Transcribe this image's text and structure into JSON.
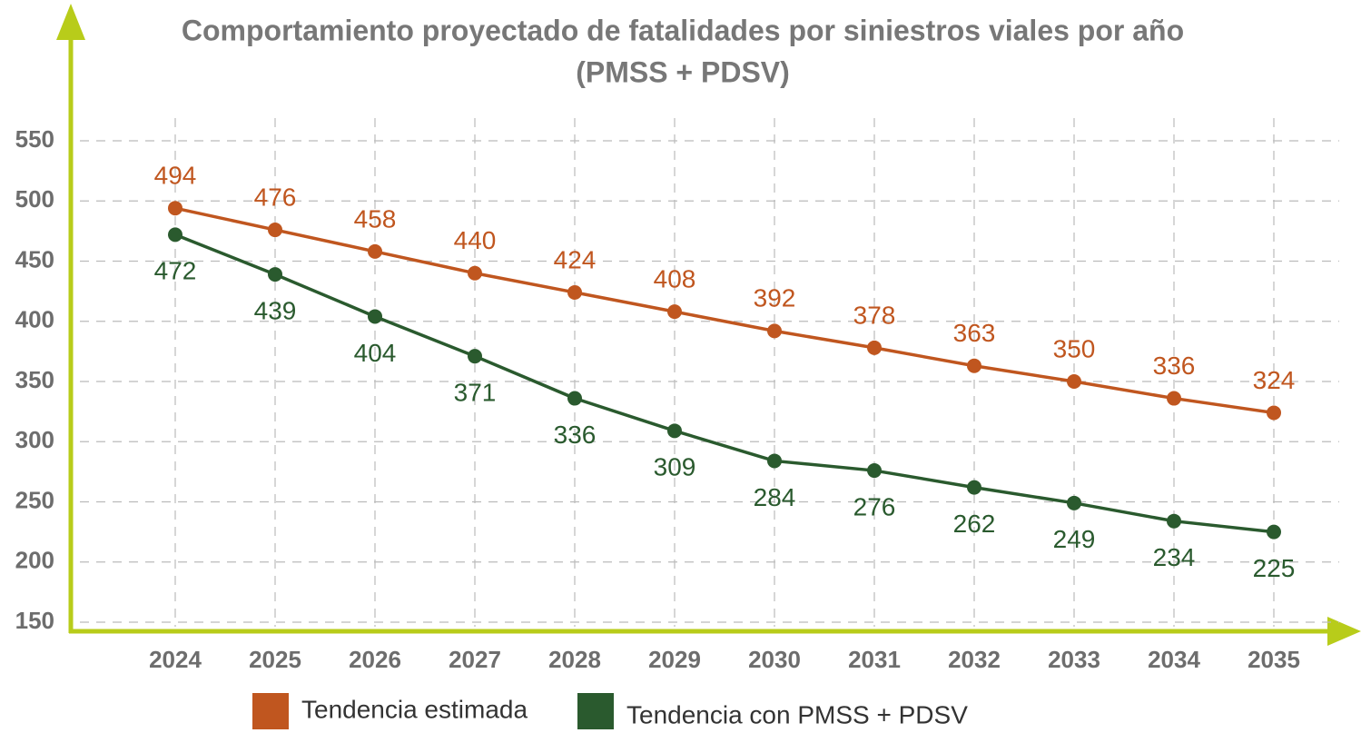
{
  "chart_data": {
    "type": "line",
    "title": "Comportamiento proyectado de fatalidades por siniestros viales por año",
    "subtitle": "(PMSS + PDSV)",
    "categories": [
      "2024",
      "2025",
      "2026",
      "2027",
      "2028",
      "2029",
      "2030",
      "2031",
      "2032",
      "2033",
      "2034",
      "2035"
    ],
    "series": [
      {
        "name": "Tendencia estimada",
        "color": "#c0561f",
        "values": [
          494,
          476,
          458,
          440,
          424,
          408,
          392,
          378,
          363,
          350,
          336,
          324
        ]
      },
      {
        "name": "Tendencia con PMSS + PDSV",
        "color": "#2a5a2e",
        "values": [
          472,
          439,
          404,
          371,
          336,
          309,
          284,
          276,
          262,
          249,
          234,
          225
        ]
      }
    ],
    "ylim": [
      150,
      550
    ],
    "yticks": [
      150,
      200,
      250,
      300,
      350,
      400,
      450,
      500,
      550
    ],
    "grid": true,
    "legend": "bottom"
  }
}
